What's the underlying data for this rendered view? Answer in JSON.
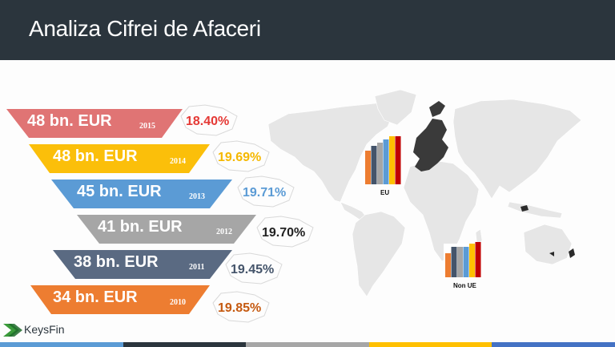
{
  "header": {
    "title": "Analiza Cifrei de Afaceri"
  },
  "rows": [
    {
      "amount": "48 bn. EUR",
      "year": "2015",
      "percent": "18.40%",
      "color": "#e07474",
      "pct_color": "#e53935"
    },
    {
      "amount": "48 bn. EUR",
      "year": "2014",
      "percent": "19.69%",
      "color": "#fbbf0a",
      "pct_color": "#f5b800"
    },
    {
      "amount": "45 bn. EUR",
      "year": "2013",
      "percent": "19.71%",
      "color": "#5b9bd5",
      "pct_color": "#5b9bd5"
    },
    {
      "amount": "41 bn. EUR",
      "year": "2012",
      "percent": "19.70%",
      "color": "#a6a6a6",
      "pct_color": "#222222"
    },
    {
      "amount": "38 bn. EUR",
      "year": "2011",
      "percent": "19.45%",
      "color": "#5a6a82",
      "pct_color": "#44546a"
    },
    {
      "amount": "34 bn. EUR",
      "year": "2010",
      "percent": "19.85%",
      "color": "#ed7d31",
      "pct_color": "#c55a11"
    }
  ],
  "map": {
    "eu_label": "EU",
    "non_eu_label": "Non UE",
    "bar_colors": [
      "#ed7d31",
      "#44546a",
      "#a6a6a6",
      "#5b9bd5",
      "#ffc000",
      "#c00000"
    ]
  },
  "logo": {
    "text": "KeysFin"
  },
  "footer_colors": [
    "#5b9bd5",
    "#2b353d",
    "#a6a6a6",
    "#ffc000",
    "#4472c4"
  ]
}
